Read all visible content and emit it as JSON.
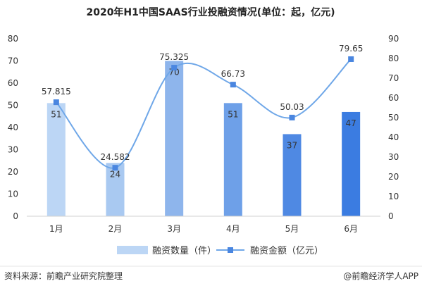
{
  "chart_data": {
    "type": "bar+line",
    "title": "2020年H1中国SAAS行业投融资情况(单位：起，亿元)",
    "categories": [
      "1月",
      "2月",
      "3月",
      "4月",
      "5月",
      "6月"
    ],
    "series": [
      {
        "name": "融资数量（件）",
        "type": "bar",
        "axis": "left",
        "values": [
          51,
          24,
          70,
          51,
          37,
          47
        ],
        "value_labels": [
          "51",
          "24",
          "70",
          "51",
          "37",
          "47"
        ]
      },
      {
        "name": "融资金额（亿元）",
        "type": "line",
        "axis": "right",
        "smooth": true,
        "values": [
          57.815,
          24.582,
          75.325,
          66.73,
          50.03,
          79.65
        ],
        "value_labels": [
          "57.815",
          "24.582",
          "75.325",
          "66.73",
          "50.03",
          "79.65"
        ]
      }
    ],
    "left_axis": {
      "ylim": [
        0,
        80
      ],
      "ticks": [
        0,
        10,
        20,
        30,
        40,
        50,
        60,
        70,
        80
      ],
      "tick_labels": [
        "0",
        "10",
        "20",
        "30",
        "40",
        "50",
        "60",
        "70",
        "80"
      ]
    },
    "right_axis": {
      "ylim": [
        0,
        90
      ],
      "ticks": [
        0,
        10,
        20,
        30,
        40,
        50,
        60,
        70,
        80,
        90
      ],
      "tick_labels": [
        "0",
        "10",
        "20",
        "30",
        "40",
        "50",
        "60",
        "70",
        "80",
        "90"
      ]
    },
    "grid": false,
    "legend_position": "bottom"
  },
  "colors": {
    "bars": [
      "#bcd6f5",
      "#a9c9f1",
      "#8eb5ec",
      "#6ea0e8",
      "#4f89e3",
      "#3b7ce1"
    ],
    "line": "#6fa7e8",
    "marker": "#4a86e0",
    "axis_text": "#333333",
    "title_text": "#222222",
    "footer_text": "#333333"
  },
  "footer": {
    "source": "资料来源：前瞻产业研究院整理",
    "brand": "@前瞻经济学人APP"
  },
  "watermark": {
    "text": "前瞻产业研究院"
  }
}
